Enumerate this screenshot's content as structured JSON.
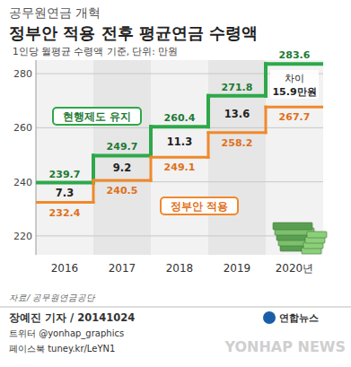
{
  "chart_data": {
    "type": "step",
    "kicker": "공무원연금 개혁",
    "title": "정부안 적용 전후 평균연금 수령액",
    "subtitle": "1인당 월평균 수령액 기준, 단위: 만원",
    "categories": [
      "2016",
      "2017",
      "2018",
      "2019",
      "2020년"
    ],
    "series": [
      {
        "name": "현행제도 유지",
        "color": "#2ea84a",
        "values": [
          239.7,
          249.7,
          260.4,
          271.8,
          283.6
        ]
      },
      {
        "name": "정부안 적용",
        "color": "#f0892b",
        "values": [
          232.4,
          240.5,
          249.1,
          258.2,
          267.7
        ]
      }
    ],
    "difference": {
      "label": "차이",
      "values": [
        7.3,
        9.2,
        11.3,
        13.6,
        15.9
      ],
      "value_labels": [
        "7.3",
        "9.2",
        "11.3",
        "13.6",
        "15.9만원"
      ]
    },
    "ylim": [
      213,
      285
    ],
    "yticks": [
      220,
      240,
      260,
      280
    ],
    "grid": true,
    "data_labels": true,
    "source": "자료/ 공무원연금공단",
    "credits": [
      "장예진 기자 / 20141024",
      "트위터 @yonhap_graphics",
      "페이스북 tuney.kr/LeYN1"
    ],
    "logo": "연합뉴스",
    "watermark": "YONHAP NEWS"
  }
}
